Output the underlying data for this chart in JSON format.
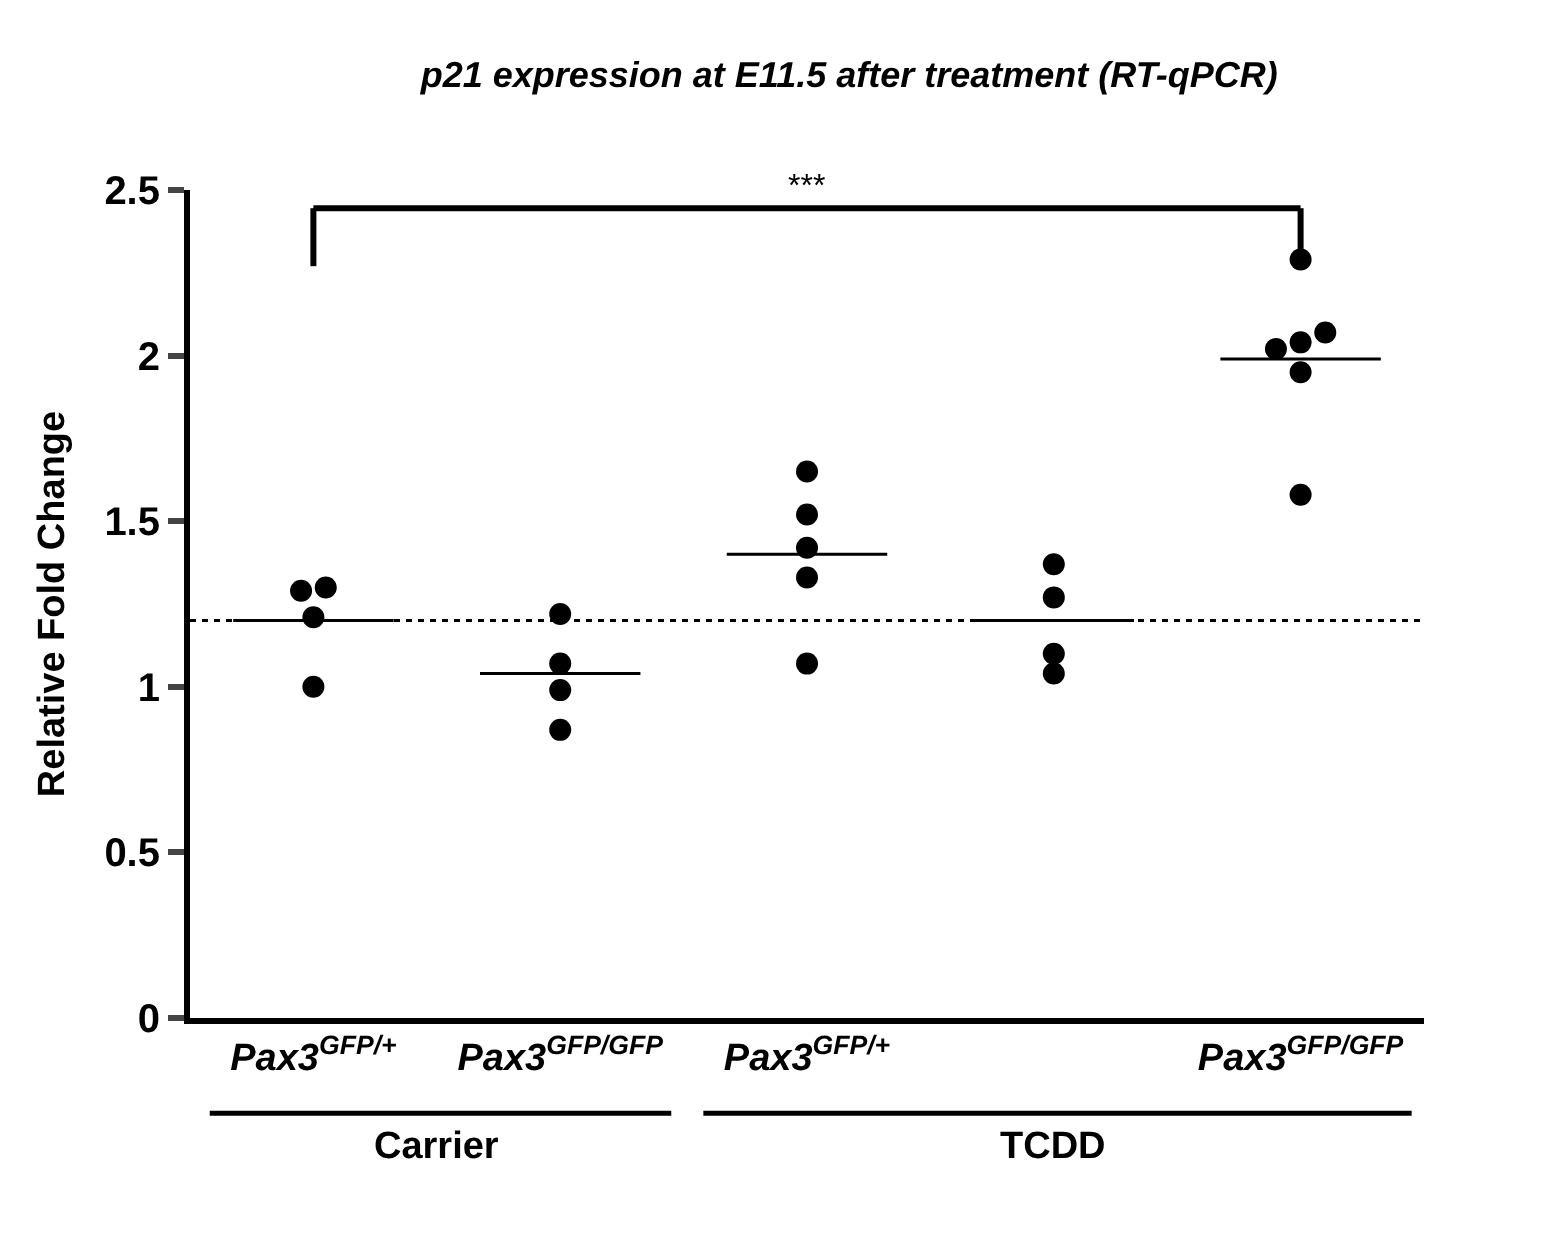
{
  "chart_data": {
    "type": "scatter",
    "title": "p21 expression at E11.5 after treatment (RT-qPCR)",
    "ylabel": "Relative Fold Change",
    "categories": [
      "Pax3$^{GFP/+}$",
      "Pax3$^{GFP/GFP}$",
      "Pax3$^{GFP/+}$",
      null,
      "Pax3$^{GFP/GFP}$"
    ],
    "series": [
      {
        "color": "#000000",
        "marker": "circle",
        "values": [
          1.29,
          1.22,
          1.65,
          1.37,
          2.29
        ]
      },
      {
        "color": "#000000",
        "marker": "circle",
        "values": [
          1.3,
          1.07,
          1.52,
          1.27,
          2.07
        ]
      },
      {
        "color": "#000000",
        "marker": "circle",
        "values": [
          1.21,
          0.99,
          1.42,
          1.1,
          2.04
        ]
      },
      {
        "color": "#000000",
        "marker": "circle",
        "values": [
          1.0,
          0.87,
          1.33,
          1.04,
          2.02
        ]
      },
      {
        "color": "#000000",
        "marker": "circle",
        "values": [
          null,
          null,
          1.07,
          null,
          1.95
        ]
      },
      {
        "color": "#000000",
        "marker": "circle",
        "values": [
          null,
          null,
          null,
          null,
          1.58
        ]
      },
      {
        "type": "box",
        "color": "#000000",
        "boxes": [
          {
            "low": 1.2,
            "q1": 1.2,
            "median": 1.2,
            "q3": 1.2,
            "high": 1.2
          },
          {
            "low": 1.04,
            "q1": 1.04,
            "median": 1.04,
            "q3": 1.04,
            "high": 1.04
          },
          {
            "low": 1.4,
            "q1": 1.4,
            "median": 1.4,
            "q3": 1.4,
            "high": 1.4
          },
          {
            "low": 1.2,
            "q1": 1.2,
            "median": 1.2,
            "q3": 1.2,
            "high": 1.2
          },
          {
            "low": 1.99,
            "q1": 1.99,
            "median": 1.99,
            "q3": 1.99,
            "high": 1.99
          }
        ]
      }
    ],
    "ylim": [
      0,
      2.5
    ],
    "yticks": [
      0,
      0.5,
      1,
      1.5,
      2,
      2.5
    ],
    "ref_lines": [
      {
        "axis": "y",
        "value": 1.2,
        "label": null,
        "color": "#000000",
        "line_style": "dotted"
      }
    ],
    "annotations": [
      "***",
      "Carrier",
      "TCDD"
    ],
    "grid": false
  }
}
